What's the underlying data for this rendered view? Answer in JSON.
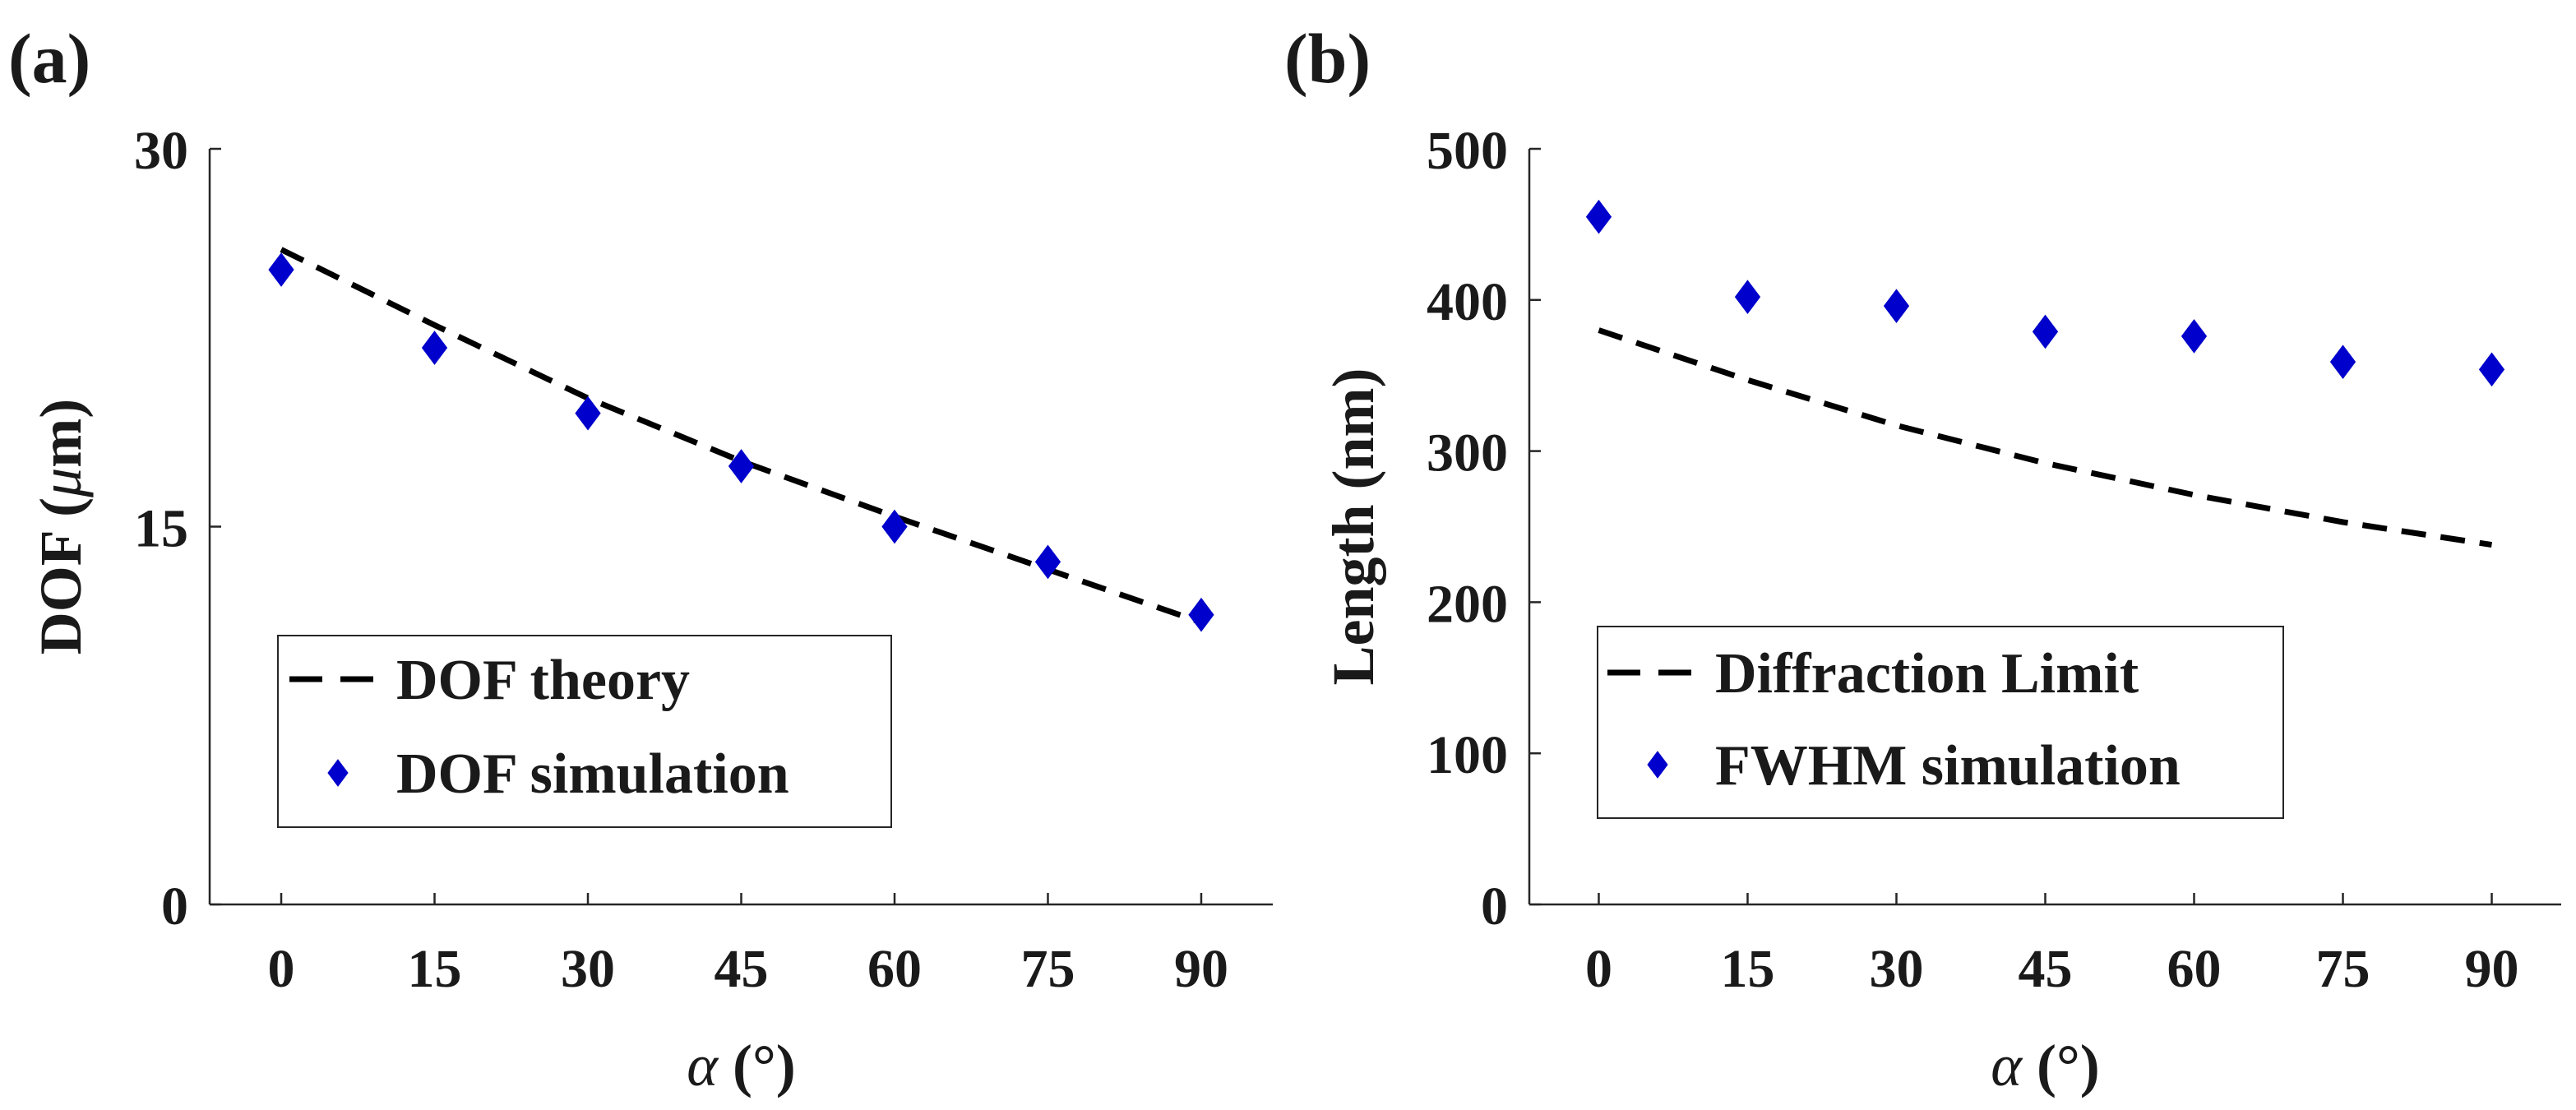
{
  "chart_data": [
    {
      "type": "line",
      "panel_label": "(a)",
      "xlabel_symbol": "α",
      "xlabel_unit": " (°)",
      "ylabel_prefix": "DOF (",
      "ylabel_symbol": "μ",
      "ylabel_suffix": "m)",
      "xticks": [
        0,
        15,
        30,
        45,
        60,
        75,
        90
      ],
      "xlim": [
        -7,
        97
      ],
      "yticks": [
        0,
        15,
        30
      ],
      "ylim": [
        0,
        30
      ],
      "grid": false,
      "legend_position": "bottom-left",
      "series": [
        {
          "name": "DOF theory",
          "style": "dashed-line",
          "color": "#000000",
          "x": [
            0,
            15,
            30,
            45,
            60,
            75,
            90
          ],
          "values": [
            26.0,
            23.0,
            20.1,
            17.6,
            15.4,
            13.3,
            11.2
          ]
        },
        {
          "name": "DOF simulation",
          "style": "diamond-marker",
          "color": "#0000cc",
          "x": [
            0,
            15,
            30,
            45,
            60,
            75,
            90
          ],
          "values": [
            25.2,
            22.1,
            19.5,
            17.4,
            15.0,
            13.6,
            11.5
          ]
        }
      ]
    },
    {
      "type": "line",
      "panel_label": "(b)",
      "xlabel_symbol": "α",
      "xlabel_unit": " (°)",
      "ylabel": "Length (nm)",
      "xticks": [
        0,
        15,
        30,
        45,
        60,
        75,
        90
      ],
      "xlim": [
        -7,
        97
      ],
      "yticks": [
        0,
        100,
        200,
        300,
        400,
        500
      ],
      "ylim": [
        0,
        500
      ],
      "grid": false,
      "legend_position": "bottom-left",
      "series": [
        {
          "name": "Diffraction Limit",
          "style": "dashed-line",
          "color": "#000000",
          "x": [
            0,
            15,
            30,
            45,
            60,
            75,
            90
          ],
          "values": [
            380,
            347,
            317,
            292,
            271,
            253,
            238
          ]
        },
        {
          "name": "FWHM simulation",
          "style": "diamond-marker",
          "color": "#0000cc",
          "x": [
            0,
            15,
            30,
            45,
            60,
            75,
            90
          ],
          "values": [
            455,
            402,
            396,
            379,
            376,
            359,
            354
          ]
        }
      ]
    }
  ]
}
